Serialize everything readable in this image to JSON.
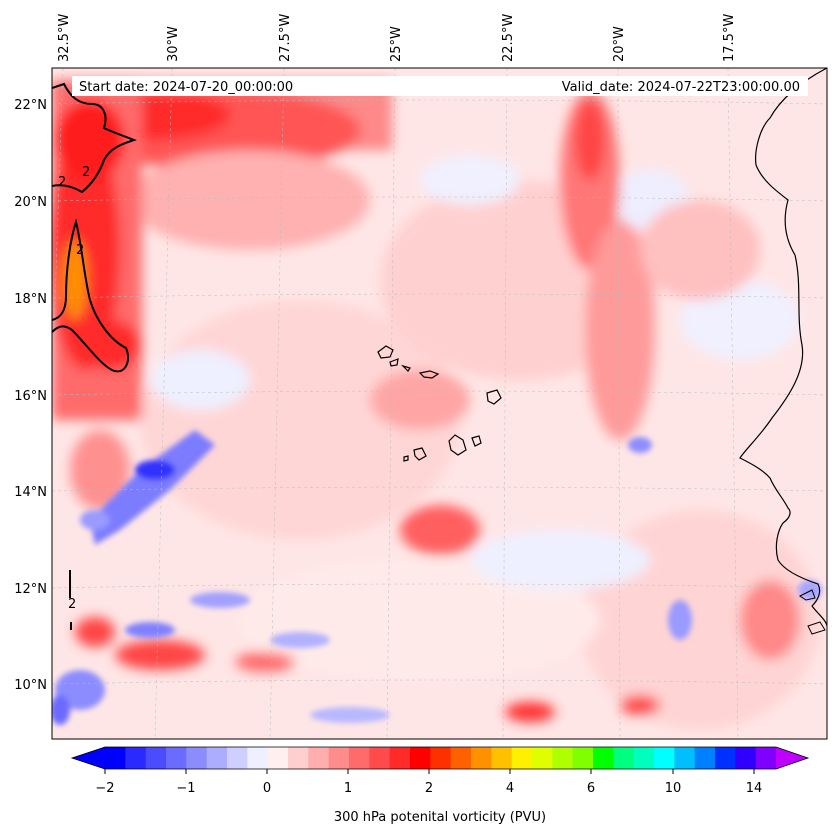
{
  "header": {
    "start_date": "Start date: 2024-07-20_00:00:00",
    "valid_date": "Valid_date: 2024-07-22T23:00:00.00"
  },
  "map": {
    "projection": "lambert-conformal",
    "field": "300 hPa potential vorticity",
    "lon_labels": [
      "32.5°W",
      "30°W",
      "27.5°W",
      "25°W",
      "22.5°W",
      "20°W",
      "17.5°W"
    ],
    "lat_labels": [
      "22°N",
      "20°N",
      "18°N",
      "16°N",
      "14°N",
      "12°N",
      "10°N"
    ],
    "contour_labels": [
      "2",
      "2",
      "2",
      "2"
    ],
    "coastline_color": "#000000",
    "gridline_color": "#bbbbbb"
  },
  "colorbar": {
    "label": "300 hPa potenital vorticity (PVU)",
    "ticks": [
      "−2",
      "−1",
      "0",
      "1",
      "2",
      "4",
      "6",
      "10",
      "14"
    ],
    "colors": [
      "#0000ff",
      "#2a2aff",
      "#4b4bff",
      "#6b6bff",
      "#8c8cff",
      "#adadff",
      "#cfcfff",
      "#efefff",
      "#ffefef",
      "#ffcfcf",
      "#ffadad",
      "#ff8c8c",
      "#ff6b6b",
      "#ff4b4b",
      "#ff2a2a",
      "#ff0000",
      "#ff3000",
      "#ff6000",
      "#ff9000",
      "#ffc000",
      "#ffef00",
      "#dfff00",
      "#afff00",
      "#7fff00",
      "#00ff00",
      "#00ff7f",
      "#00ffbf",
      "#00ffff",
      "#00bfff",
      "#007fff",
      "#0030ff",
      "#3000ff",
      "#8000ff"
    ],
    "extend_low_color": "#0000ff",
    "extend_high_color": "#bf00ff"
  }
}
